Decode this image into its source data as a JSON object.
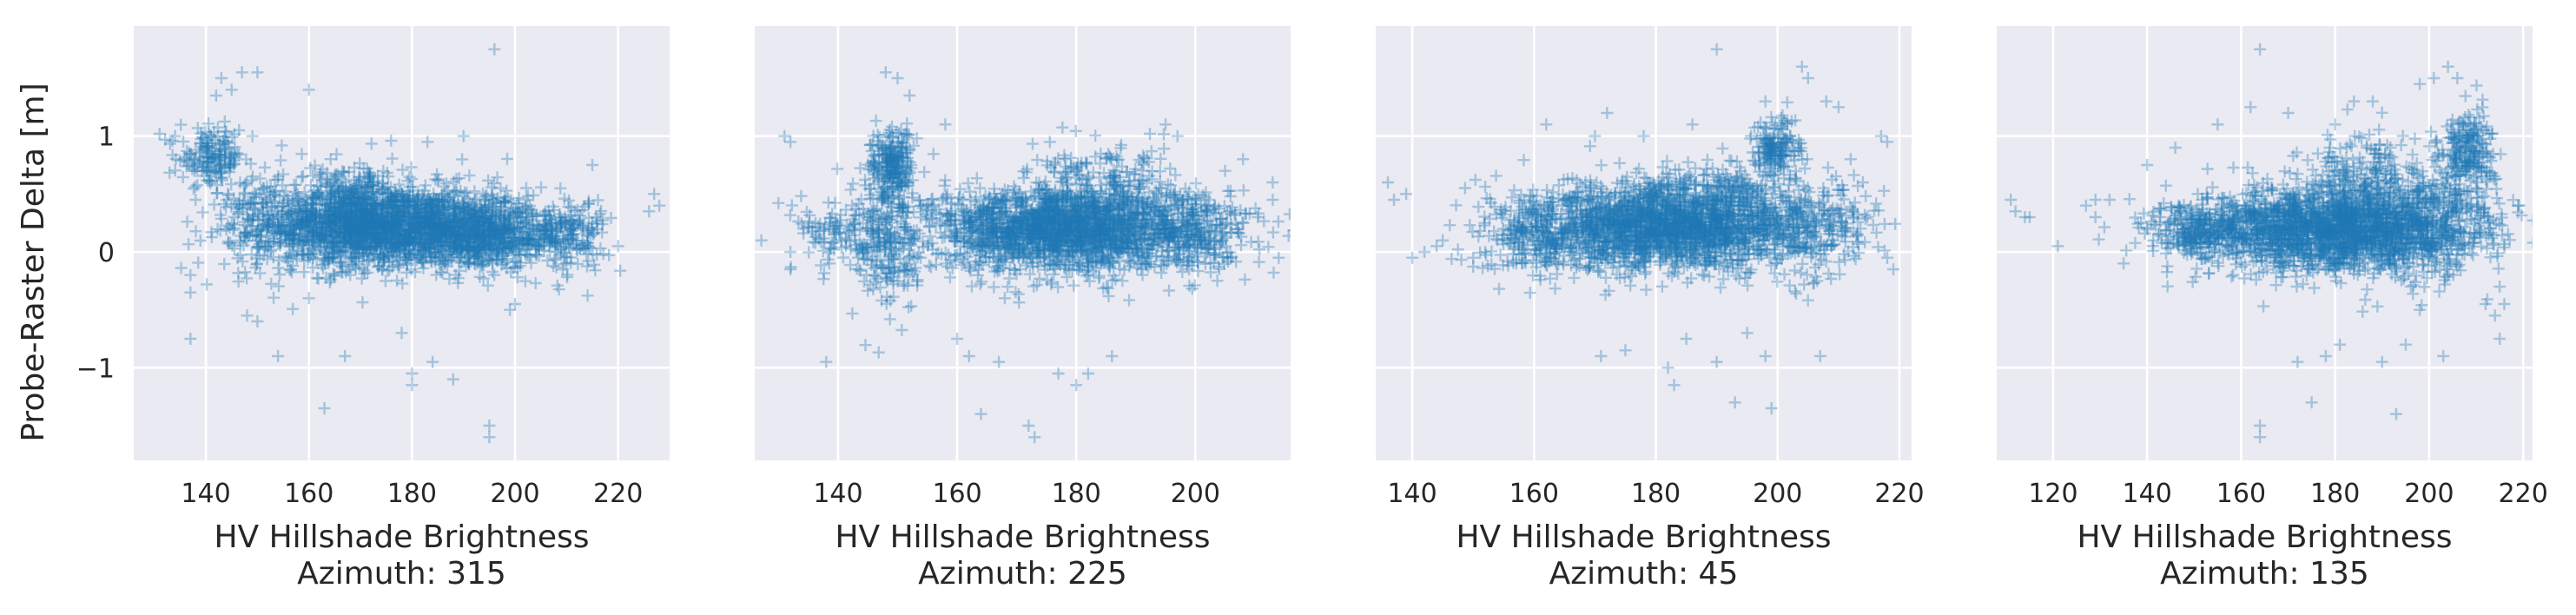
{
  "figure": {
    "ylabel": "Probe-Raster Delta [m]",
    "xlabel": "HV Hillshade Brightness",
    "colors": {
      "background": "#eaeaf2",
      "grid": "#ffffff",
      "marker": "#1f77b4",
      "text": "#262626"
    },
    "marker": "+",
    "grid": true,
    "sharey": true
  },
  "chart_data": [
    {
      "type": "scatter",
      "subtitle": "Azimuth: 315",
      "xlabel": "HV Hillshade Brightness",
      "ylabel": "Probe-Raster Delta [m]",
      "xlim": [
        126,
        230
      ],
      "ylim": [
        -1.8,
        1.95
      ],
      "xticks": [
        140,
        160,
        180,
        200,
        220
      ],
      "yticks": [
        -1,
        0,
        1
      ],
      "dense": [
        {
          "cx": 177,
          "cy": 0.22,
          "sx": 13,
          "sy": 0.17,
          "n": 2000
        },
        {
          "cx": 168,
          "cy": 0.32,
          "sx": 6,
          "sy": 0.22,
          "n": 500
        },
        {
          "cx": 195,
          "cy": 0.12,
          "sx": 8,
          "sy": 0.12,
          "n": 500
        },
        {
          "cx": 141,
          "cy": 0.82,
          "sx": 3,
          "sy": 0.12,
          "n": 160
        },
        {
          "cx": 150,
          "cy": 0.3,
          "sx": 4,
          "sy": 0.25,
          "n": 150
        },
        {
          "cx": 210,
          "cy": 0.15,
          "sx": 4,
          "sy": 0.15,
          "n": 150
        }
      ],
      "outliers": [
        [
          131,
          1.02
        ],
        [
          134,
          1.0
        ],
        [
          137,
          -0.2
        ],
        [
          137,
          -0.35
        ],
        [
          137,
          -0.75
        ],
        [
          138,
          0.45
        ],
        [
          142,
          1.35
        ],
        [
          143,
          1.5
        ],
        [
          145,
          1.4
        ],
        [
          147,
          1.55
        ],
        [
          150,
          1.55
        ],
        [
          148,
          -0.55
        ],
        [
          150,
          -0.6
        ],
        [
          154,
          -0.9
        ],
        [
          160,
          1.4
        ],
        [
          163,
          -1.35
        ],
        [
          165,
          -0.2
        ],
        [
          167,
          -0.9
        ],
        [
          178,
          -0.7
        ],
        [
          180,
          -1.05
        ],
        [
          180,
          -1.15
        ],
        [
          184,
          -0.95
        ],
        [
          188,
          -1.1
        ],
        [
          195,
          -1.5
        ],
        [
          195,
          -1.6
        ],
        [
          196,
          1.75
        ],
        [
          199,
          -0.5
        ],
        [
          215,
          0.75
        ],
        [
          220,
          0.05
        ],
        [
          226,
          0.35
        ],
        [
          228,
          0.4
        ],
        [
          227,
          0.5
        ],
        [
          183,
          0.95
        ],
        [
          190,
          1.0
        ],
        [
          160,
          -0.4
        ],
        [
          200,
          -0.45
        ]
      ]
    },
    {
      "type": "scatter",
      "subtitle": "Azimuth: 225",
      "xlabel": "HV Hillshade Brightness",
      "ylabel": "",
      "xlim": [
        126,
        216
      ],
      "ylim": [
        -1.8,
        1.95
      ],
      "xticks": [
        140,
        160,
        180,
        200
      ],
      "yticks": [
        -1,
        0,
        1
      ],
      "dense": [
        {
          "cx": 178,
          "cy": 0.2,
          "sx": 11,
          "sy": 0.18,
          "n": 2200
        },
        {
          "cx": 149,
          "cy": 0.75,
          "sx": 1.8,
          "sy": 0.15,
          "n": 220
        },
        {
          "cx": 149,
          "cy": 0.1,
          "sx": 3,
          "sy": 0.35,
          "n": 200
        },
        {
          "cx": 142,
          "cy": 0.15,
          "sx": 5,
          "sy": 0.15,
          "n": 150
        },
        {
          "cx": 200,
          "cy": 0.2,
          "sx": 5,
          "sy": 0.18,
          "n": 250
        },
        {
          "cx": 185,
          "cy": 0.6,
          "sx": 6,
          "sy": 0.15,
          "n": 150
        }
      ],
      "outliers": [
        [
          131,
          1.0
        ],
        [
          132,
          0.95
        ],
        [
          132,
          0.0
        ],
        [
          132,
          -0.15
        ],
        [
          148,
          1.55
        ],
        [
          150,
          1.5
        ],
        [
          152,
          1.35
        ],
        [
          138,
          -0.95
        ],
        [
          160,
          -0.75
        ],
        [
          162,
          -0.9
        ],
        [
          164,
          -1.4
        ],
        [
          167,
          -0.95
        ],
        [
          172,
          -1.5
        ],
        [
          173,
          -1.6
        ],
        [
          177,
          -1.05
        ],
        [
          180,
          -1.15
        ],
        [
          182,
          -1.05
        ],
        [
          186,
          -0.9
        ],
        [
          195,
          1.1
        ],
        [
          197,
          1.0
        ],
        [
          205,
          0.7
        ],
        [
          208,
          0.8
        ],
        [
          213,
          0.45
        ],
        [
          213,
          0.6
        ],
        [
          214,
          -0.05
        ],
        [
          158,
          1.1
        ],
        [
          168,
          -0.4
        ]
      ]
    },
    {
      "type": "scatter",
      "subtitle": "Azimuth: 45",
      "xlabel": "HV Hillshade Brightness",
      "ylabel": "",
      "xlim": [
        134,
        222
      ],
      "ylim": [
        -1.8,
        1.95
      ],
      "xticks": [
        140,
        160,
        180,
        200,
        220
      ],
      "yticks": [
        -1,
        0,
        1
      ],
      "dense": [
        {
          "cx": 182,
          "cy": 0.22,
          "sx": 11,
          "sy": 0.18,
          "n": 2200
        },
        {
          "cx": 200,
          "cy": 0.9,
          "sx": 2,
          "sy": 0.12,
          "n": 160
        },
        {
          "cx": 205,
          "cy": 0.2,
          "sx": 5,
          "sy": 0.2,
          "n": 250
        },
        {
          "cx": 160,
          "cy": 0.15,
          "sx": 4,
          "sy": 0.2,
          "n": 200
        },
        {
          "cx": 192,
          "cy": 0.55,
          "sx": 6,
          "sy": 0.15,
          "n": 150
        }
      ],
      "outliers": [
        [
          136,
          0.6
        ],
        [
          137,
          0.45
        ],
        [
          139,
          0.5
        ],
        [
          140,
          -0.05
        ],
        [
          142,
          0.0
        ],
        [
          144,
          0.05
        ],
        [
          145,
          0.1
        ],
        [
          150,
          -0.05
        ],
        [
          152,
          0.0
        ],
        [
          162,
          1.1
        ],
        [
          170,
          1.0
        ],
        [
          172,
          1.2
        ],
        [
          178,
          1.0
        ],
        [
          186,
          1.1
        ],
        [
          190,
          1.75
        ],
        [
          198,
          1.3
        ],
        [
          204,
          1.6
        ],
        [
          205,
          1.5
        ],
        [
          208,
          1.3
        ],
        [
          210,
          1.25
        ],
        [
          212,
          0.8
        ],
        [
          217,
          1.0
        ],
        [
          218,
          0.95
        ],
        [
          218,
          -0.05
        ],
        [
          219,
          -0.15
        ],
        [
          171,
          -0.9
        ],
        [
          175,
          -0.85
        ],
        [
          182,
          -1.0
        ],
        [
          183,
          -1.15
        ],
        [
          185,
          -0.75
        ],
        [
          190,
          -0.95
        ],
        [
          193,
          -1.3
        ],
        [
          195,
          -0.7
        ],
        [
          198,
          -0.9
        ],
        [
          199,
          -1.35
        ],
        [
          207,
          -0.9
        ],
        [
          214,
          0.6
        ]
      ]
    },
    {
      "type": "scatter",
      "subtitle": "Azimuth: 135",
      "xlabel": "HV Hillshade Brightness",
      "ylabel": "",
      "xlim": [
        108,
        222
      ],
      "ylim": [
        -1.8,
        1.95
      ],
      "xticks": [
        120,
        140,
        160,
        180,
        200,
        220
      ],
      "yticks": [
        -1,
        0,
        1
      ],
      "dense": [
        {
          "cx": 180,
          "cy": 0.2,
          "sx": 14,
          "sy": 0.18,
          "n": 2200
        },
        {
          "cx": 208,
          "cy": 0.85,
          "sx": 3,
          "sy": 0.18,
          "n": 220
        },
        {
          "cx": 200,
          "cy": 0.25,
          "sx": 6,
          "sy": 0.25,
          "n": 300
        },
        {
          "cx": 152,
          "cy": 0.15,
          "sx": 6,
          "sy": 0.12,
          "n": 250
        },
        {
          "cx": 187,
          "cy": 0.65,
          "sx": 6,
          "sy": 0.2,
          "n": 180
        }
      ],
      "outliers": [
        [
          111,
          0.45
        ],
        [
          112,
          0.35
        ],
        [
          114,
          0.3
        ],
        [
          115,
          0.3
        ],
        [
          121,
          0.05
        ],
        [
          127,
          0.4
        ],
        [
          129,
          0.3
        ],
        [
          132,
          0.45
        ],
        [
          135,
          -0.1
        ],
        [
          140,
          0.75
        ],
        [
          146,
          0.9
        ],
        [
          155,
          1.1
        ],
        [
          162,
          1.25
        ],
        [
          164,
          1.75
        ],
        [
          170,
          1.2
        ],
        [
          180,
          1.1
        ],
        [
          184,
          1.3
        ],
        [
          188,
          1.3
        ],
        [
          198,
          1.45
        ],
        [
          201,
          1.5
        ],
        [
          204,
          1.6
        ],
        [
          206,
          1.5
        ],
        [
          212,
          1.05
        ],
        [
          164,
          -1.5
        ],
        [
          164,
          -1.6
        ],
        [
          172,
          -0.95
        ],
        [
          175,
          -1.3
        ],
        [
          178,
          -0.9
        ],
        [
          181,
          -0.8
        ],
        [
          190,
          -0.95
        ],
        [
          193,
          -1.4
        ],
        [
          195,
          -0.8
        ],
        [
          198,
          -0.5
        ],
        [
          203,
          -0.9
        ],
        [
          212,
          -0.45
        ],
        [
          214,
          -0.55
        ],
        [
          215,
          -0.75
        ],
        [
          215,
          -0.3
        ],
        [
          216,
          -0.45
        ]
      ]
    }
  ]
}
